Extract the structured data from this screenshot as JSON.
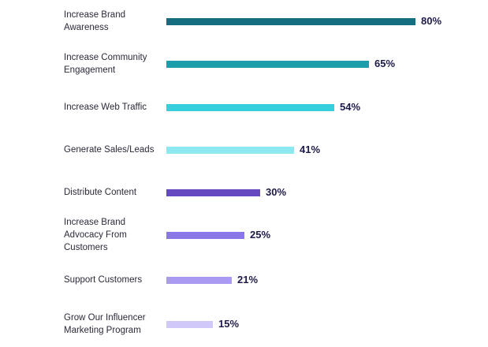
{
  "chart_data": {
    "type": "bar",
    "orientation": "horizontal",
    "title": "",
    "xlabel": "",
    "ylabel": "",
    "xlim": [
      0,
      100
    ],
    "grid": false,
    "categories": [
      "Increase Brand Awareness",
      "Increase Community Engagement",
      "Increase Web Traffic",
      "Generate Sales/Leads",
      "Distribute Content",
      "Increase Brand Advocacy From Customers",
      "Support Customers",
      "Grow Our Influencer Marketing Program"
    ],
    "values": [
      80,
      65,
      54,
      41,
      30,
      25,
      21,
      15
    ],
    "value_labels": [
      "80%",
      "65%",
      "54%",
      "41%",
      "30%",
      "25%",
      "21%",
      "15%"
    ],
    "colors": [
      "#156e80",
      "#1b9dac",
      "#36d0dd",
      "#8ee8ef",
      "#6449c1",
      "#8a76e6",
      "#aa9af0",
      "#d0c9f7"
    ]
  }
}
